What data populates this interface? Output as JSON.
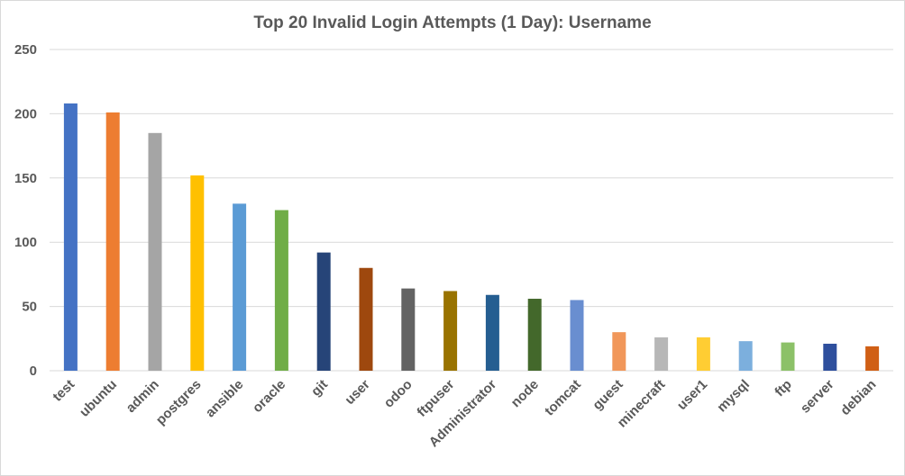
{
  "chart_data": {
    "type": "bar",
    "title": "Top 20 Invalid Login Attempts (1 Day): Username",
    "xlabel": "",
    "ylabel": "",
    "ylim": [
      0,
      250
    ],
    "yticks": [
      0,
      50,
      100,
      150,
      200,
      250
    ],
    "grid": true,
    "legend": "none",
    "categories": [
      "test",
      "ubuntu",
      "admin",
      "postgres",
      "ansible",
      "oracle",
      "git",
      "user",
      "odoo",
      "ftpuser",
      "Administrator",
      "node",
      "tomcat",
      "guest",
      "minecraft",
      "user1",
      "mysql",
      "ftp",
      "server",
      "debian"
    ],
    "values": [
      208,
      201,
      185,
      152,
      130,
      125,
      92,
      80,
      64,
      62,
      59,
      56,
      55,
      30,
      26,
      26,
      23,
      22,
      21,
      19
    ],
    "colors": [
      "#4472c4",
      "#ed7d31",
      "#a5a5a5",
      "#ffc000",
      "#5b9bd5",
      "#70ad47",
      "#264478",
      "#9e480e",
      "#636363",
      "#997300",
      "#255e91",
      "#43682b",
      "#698ed0",
      "#f1975a",
      "#b7b7b7",
      "#ffcd33",
      "#7cafdd",
      "#8cc168",
      "#2e4f9d",
      "#d05f15"
    ]
  }
}
